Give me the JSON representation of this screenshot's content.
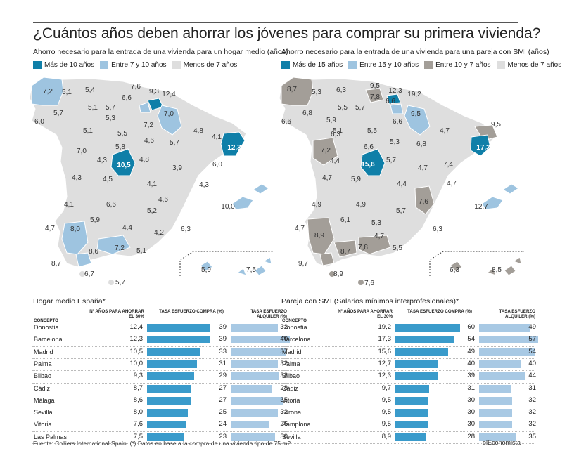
{
  "title": "¿Cuántos años deben ahorrar los jóvenes para comprar su primera vivienda?",
  "maps": [
    {
      "subtitle": "Ahorro necesario para la entrada de una vivienda para un hogar medio (años)",
      "legend": [
        {
          "label": "Más de 10 años",
          "color": "#0f7fa8"
        },
        {
          "label": "Entre 7 y 10 años",
          "color": "#9ec4e0"
        },
        {
          "label": "Menos de 7 años",
          "color": "#dedede"
        }
      ],
      "labels": [
        {
          "v": "7,2",
          "hi": false
        },
        {
          "v": "5,1",
          "hi": false
        },
        {
          "v": "5,4",
          "hi": false
        },
        {
          "v": "7,6",
          "hi": false
        },
        {
          "v": "9,3",
          "hi": false
        },
        {
          "v": "12,4",
          "hi": false
        },
        {
          "v": "6,6",
          "hi": false
        },
        {
          "v": "5,7",
          "hi": false
        },
        {
          "v": "5,1",
          "hi": false
        },
        {
          "v": "7,0",
          "hi": false
        },
        {
          "v": "6,0",
          "hi": false
        },
        {
          "v": "5,3",
          "hi": false
        },
        {
          "v": "5,7",
          "hi": false
        },
        {
          "v": "7,2",
          "hi": false
        },
        {
          "v": "5,1",
          "hi": false
        },
        {
          "v": "5,5",
          "hi": false
        },
        {
          "v": "4,8",
          "hi": false
        },
        {
          "v": "4,1",
          "hi": false
        },
        {
          "v": "4,6",
          "hi": false
        },
        {
          "v": "5,7",
          "hi": false
        },
        {
          "v": "12,3",
          "hi": true
        },
        {
          "v": "5,8",
          "hi": false
        },
        {
          "v": "7,0",
          "hi": false
        },
        {
          "v": "4,3",
          "hi": false
        },
        {
          "v": "4,8",
          "hi": false
        },
        {
          "v": "10,5",
          "hi": true
        },
        {
          "v": "3,9",
          "hi": false
        },
        {
          "v": "6,0",
          "hi": false
        },
        {
          "v": "4,3",
          "hi": false
        },
        {
          "v": "4,5",
          "hi": false
        },
        {
          "v": "4,1",
          "hi": false
        },
        {
          "v": "4,3",
          "hi": false
        },
        {
          "v": "4,6",
          "hi": false
        },
        {
          "v": "4,1",
          "hi": false
        },
        {
          "v": "6,6",
          "hi": false
        },
        {
          "v": "10,0",
          "hi": false
        },
        {
          "v": "5,2",
          "hi": false
        },
        {
          "v": "5,9",
          "hi": false
        },
        {
          "v": "4,7",
          "hi": false
        },
        {
          "v": "4,4",
          "hi": false
        },
        {
          "v": "8,0",
          "hi": false
        },
        {
          "v": "4,2",
          "hi": false
        },
        {
          "v": "6,3",
          "hi": false
        },
        {
          "v": "7,2",
          "hi": false
        },
        {
          "v": "8,6",
          "hi": false
        },
        {
          "v": "5,1",
          "hi": false
        },
        {
          "v": "8,7",
          "hi": false
        },
        {
          "v": "6,7",
          "hi": false
        },
        {
          "v": "5,7",
          "hi": false
        },
        {
          "v": "5,9",
          "hi": false
        },
        {
          "v": "7,5",
          "hi": false
        }
      ]
    },
    {
      "subtitle": "Ahorro necesario para la entrada de una vivienda para una pareja con SMI (años)",
      "legend": [
        {
          "label": "Más de 15 años",
          "color": "#0f7fa8"
        },
        {
          "label": "Entre 15 y 10 años",
          "color": "#9ec4e0"
        },
        {
          "label": "Entre 10 y 7 años",
          "color": "#a39e98"
        },
        {
          "label": "Menos de 7 años",
          "color": "#dedede"
        }
      ],
      "labels": [
        {
          "v": "8,7",
          "hi": false
        },
        {
          "v": "5,3",
          "hi": false
        },
        {
          "v": "6,3",
          "hi": false
        },
        {
          "v": "9,5",
          "hi": false
        },
        {
          "v": "12,3",
          "hi": false
        },
        {
          "v": "19,2",
          "hi": false
        },
        {
          "v": "7,8",
          "hi": false
        },
        {
          "v": "5,7",
          "hi": false
        },
        {
          "v": "6,6",
          "hi": false
        },
        {
          "v": "9,5",
          "hi": false
        },
        {
          "v": "6,6",
          "hi": false
        },
        {
          "v": "5,5",
          "hi": false
        },
        {
          "v": "6,8",
          "hi": false
        },
        {
          "v": "5,9",
          "hi": false
        },
        {
          "v": "6,6",
          "hi": false
        },
        {
          "v": "5,1",
          "hi": false
        },
        {
          "v": "5,5",
          "hi": false
        },
        {
          "v": "4,7",
          "hi": false
        },
        {
          "v": "9,5",
          "hi": false
        },
        {
          "v": "6,3",
          "hi": false
        },
        {
          "v": "5,3",
          "hi": false
        },
        {
          "v": "6,8",
          "hi": false
        },
        {
          "v": "17,3",
          "hi": true
        },
        {
          "v": "7,2",
          "hi": false
        },
        {
          "v": "6,6",
          "hi": false
        },
        {
          "v": "4,4",
          "hi": false
        },
        {
          "v": "5,7",
          "hi": false
        },
        {
          "v": "15,6",
          "hi": true
        },
        {
          "v": "7,4",
          "hi": false
        },
        {
          "v": "4,7",
          "hi": false
        },
        {
          "v": "4,7",
          "hi": false
        },
        {
          "v": "5,9",
          "hi": false
        },
        {
          "v": "4,4",
          "hi": false
        },
        {
          "v": "4,7",
          "hi": false
        },
        {
          "v": "4,9",
          "hi": false
        },
        {
          "v": "4,9",
          "hi": false
        },
        {
          "v": "7,6",
          "hi": false
        },
        {
          "v": "12,7",
          "hi": false
        },
        {
          "v": "5,7",
          "hi": false
        },
        {
          "v": "6,1",
          "hi": false
        },
        {
          "v": "4,7",
          "hi": false
        },
        {
          "v": "5,3",
          "hi": false
        },
        {
          "v": "6,3",
          "hi": false
        },
        {
          "v": "8,9",
          "hi": false
        },
        {
          "v": "4,7",
          "hi": false
        },
        {
          "v": "8,7",
          "hi": false
        },
        {
          "v": "7,8",
          "hi": false
        },
        {
          "v": "5,5",
          "hi": false
        },
        {
          "v": "9,7",
          "hi": false
        },
        {
          "v": "8,9",
          "hi": false
        },
        {
          "v": "7,6",
          "hi": false
        },
        {
          "v": "6,3",
          "hi": false
        },
        {
          "v": "8,5",
          "hi": false
        }
      ]
    }
  ],
  "chart_data": [
    {
      "type": "table",
      "title": "Hogar medio España*",
      "columns": [
        "CONCEPTO",
        "Nº AÑOS PARA AHORRAR EL 30%",
        "TASA ESFUERZO COMPRA (%)",
        "TASA ESFUERZO ALQUILER (%)"
      ],
      "rows": [
        {
          "name": "Donostia",
          "years": "12,4",
          "buy": 39,
          "rent": 32
        },
        {
          "name": "Barcelona",
          "years": "12,3",
          "buy": 39,
          "rent": 40
        },
        {
          "name": "Madrid",
          "years": "10,5",
          "buy": 33,
          "rent": 37
        },
        {
          "name": "Palma",
          "years": "10,0",
          "buy": 31,
          "rent": 32
        },
        {
          "name": "Bilbao",
          "years": "9,3",
          "buy": 29,
          "rent": 33
        },
        {
          "name": "Cádiz",
          "years": "8,7",
          "buy": 27,
          "rent": 28
        },
        {
          "name": "Málaga",
          "years": "8,6",
          "buy": 27,
          "rent": 35
        },
        {
          "name": "Sevilla",
          "years": "8,0",
          "buy": 25,
          "rent": 32
        },
        {
          "name": "Vitoria",
          "years": "7,6",
          "buy": 24,
          "rent": 26
        },
        {
          "name": "Las Palmas",
          "years": "7,5",
          "buy": 23,
          "rent": 30
        }
      ],
      "buy_color": "#3a9bcb",
      "rent_color": "#a8c9e4",
      "buy_max": 40,
      "rent_max": 40
    },
    {
      "type": "table",
      "title": "Pareja con SMI (Salarios mínimos interprofesionales)*",
      "columns": [
        "CONCEPTO",
        "Nº AÑOS PARA AHORRAR EL 30%",
        "TASA ESFUERZO COMPRA (%)",
        "TASA ESFUERZO ALQUILER (%)"
      ],
      "rows": [
        {
          "name": "Donostia",
          "years": "19,2",
          "buy": 60,
          "rent": 49
        },
        {
          "name": "Barcelona",
          "years": "17,3",
          "buy": 54,
          "rent": 57
        },
        {
          "name": "Madrid",
          "years": "15,6",
          "buy": 49,
          "rent": 54
        },
        {
          "name": "Palma",
          "years": "12,7",
          "buy": 40,
          "rent": 40
        },
        {
          "name": "Bilbao",
          "years": "12,3",
          "buy": 39,
          "rent": 44
        },
        {
          "name": "Cádiz",
          "years": "9,7",
          "buy": 31,
          "rent": 31
        },
        {
          "name": "Vitoria",
          "years": "9,5",
          "buy": 30,
          "rent": 32
        },
        {
          "name": "Girona",
          "years": "9,5",
          "buy": 30,
          "rent": 32
        },
        {
          "name": "Pamplona",
          "years": "9,5",
          "buy": 30,
          "rent": 32
        },
        {
          "name": "Sevilla",
          "years": "8,9",
          "buy": 28,
          "rent": 35
        }
      ],
      "buy_color": "#3a9bcb",
      "rent_color": "#a8c9e4",
      "buy_max": 60,
      "rent_max": 57
    }
  ],
  "footer": "Fuente: Colliers International Spain. (*) Datos en base a la compra de una vivienda tipo de 75 m2.",
  "brand": "elEconomista"
}
